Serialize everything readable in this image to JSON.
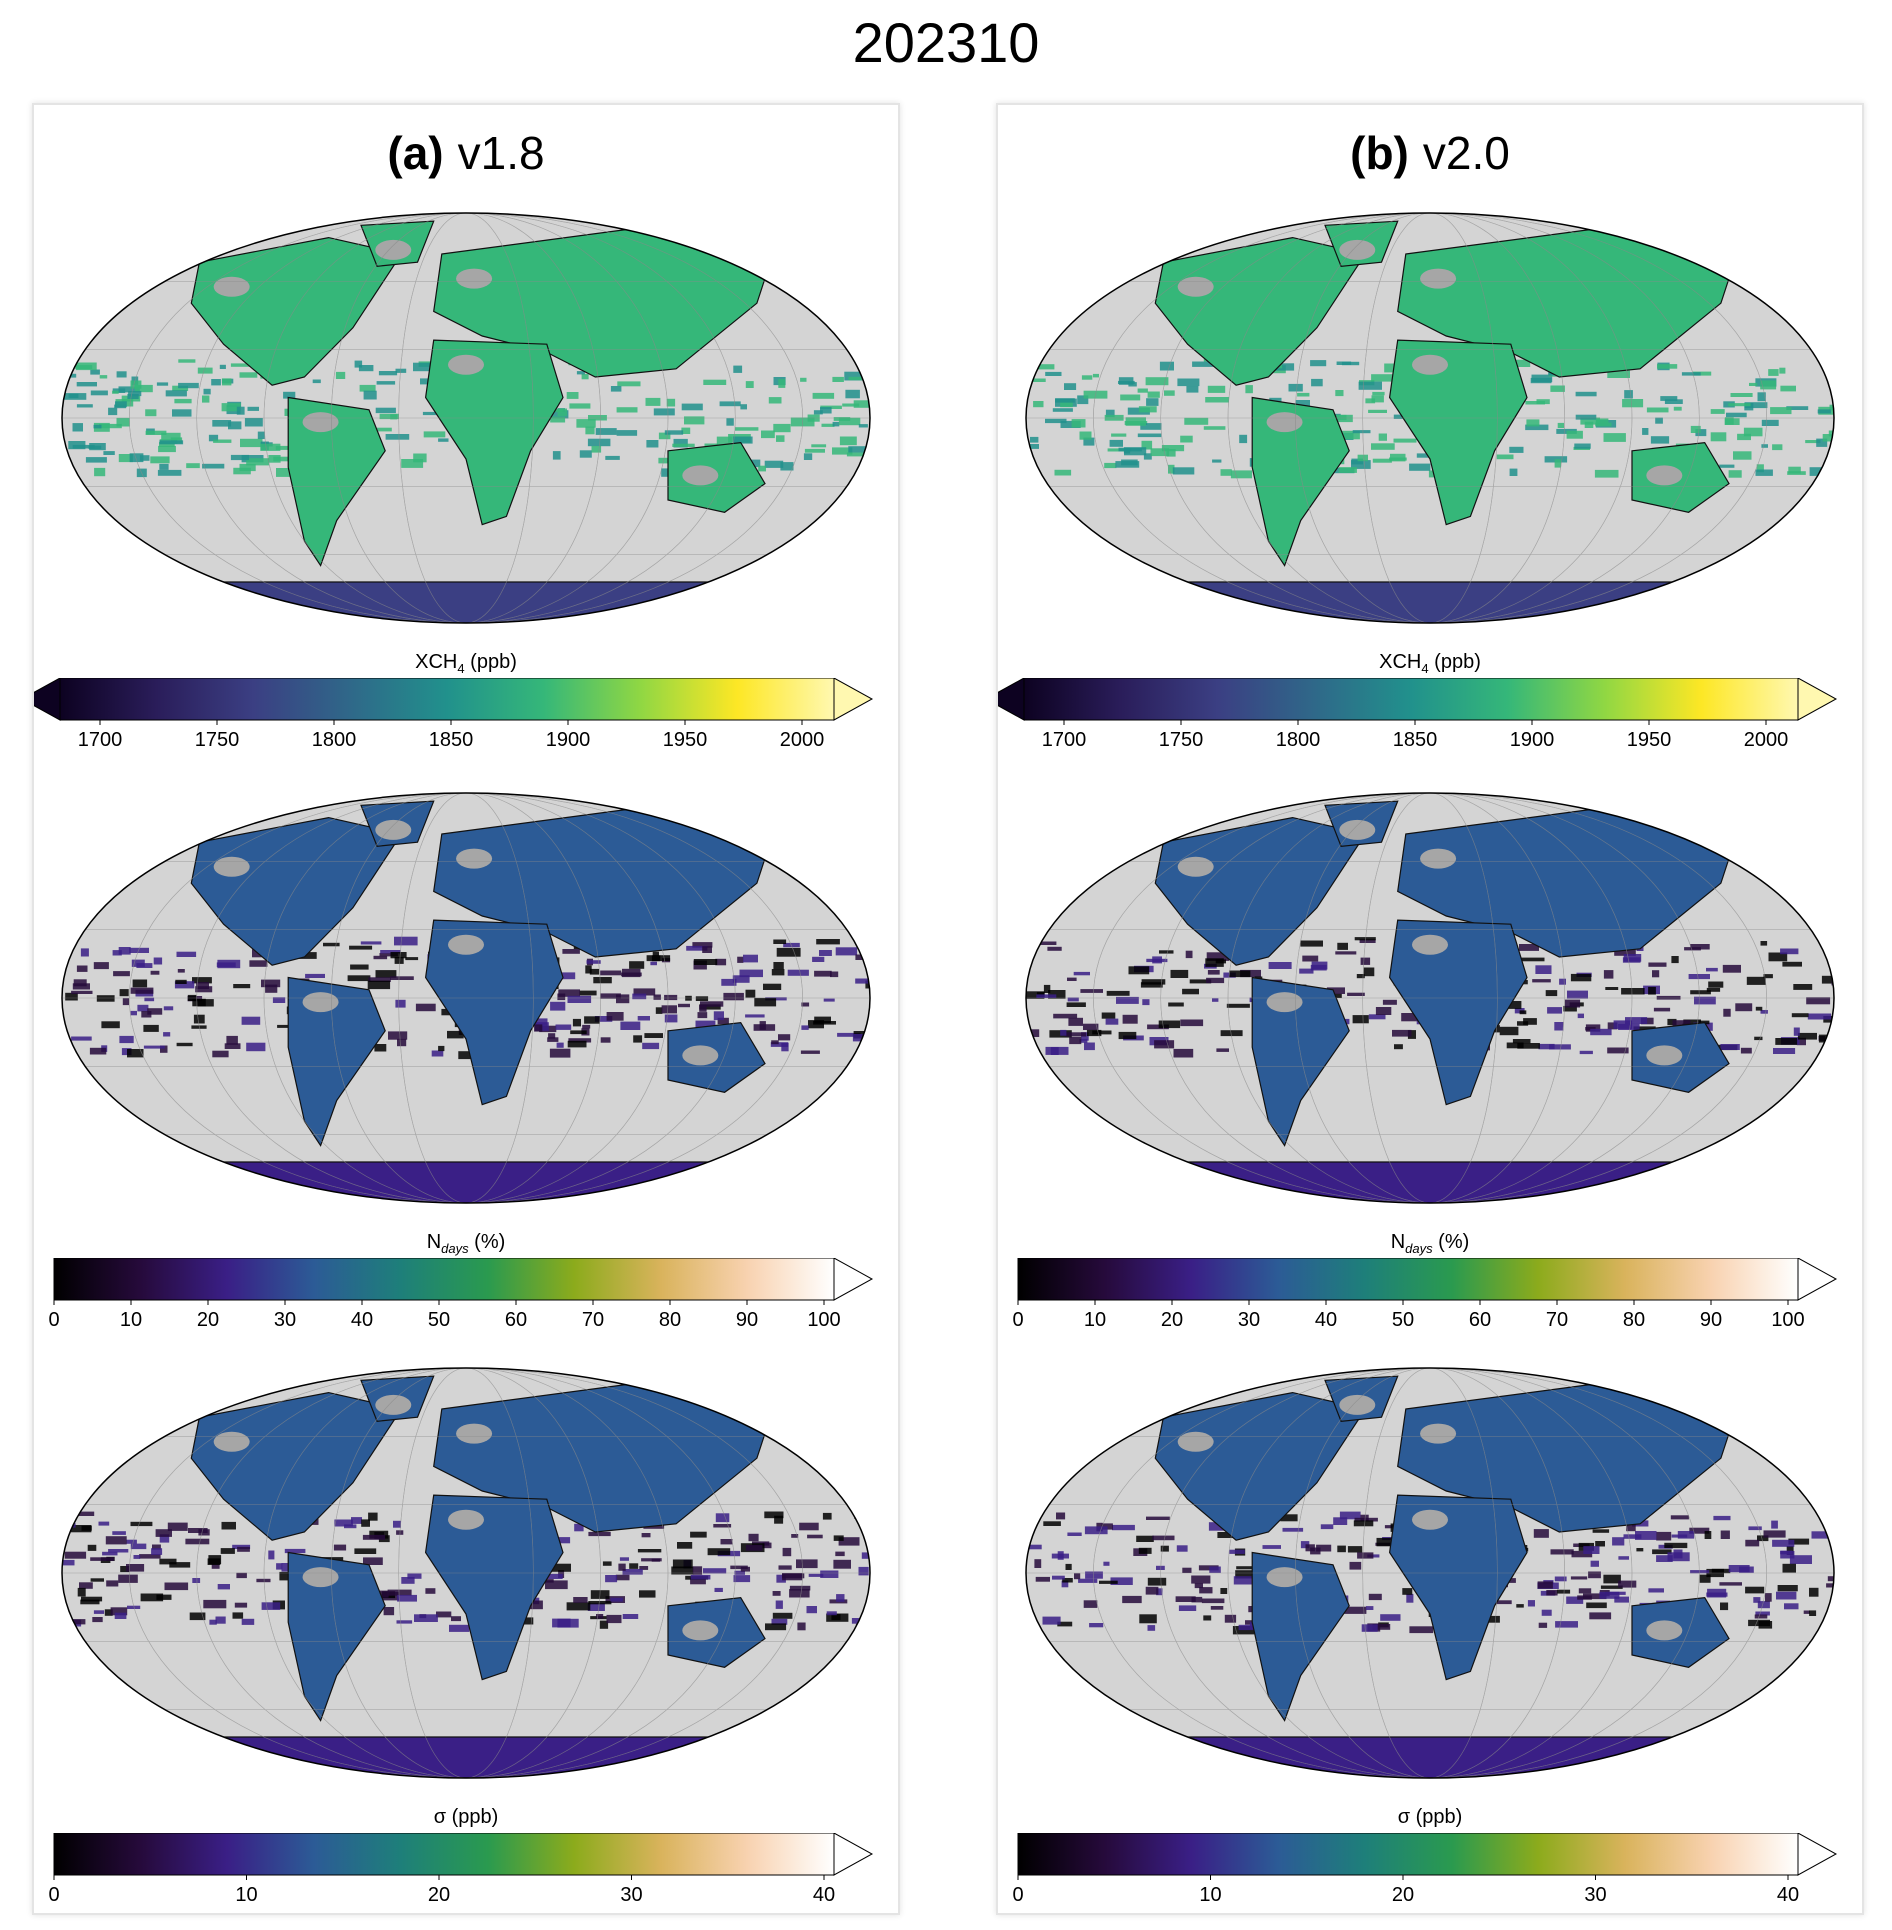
{
  "figure": {
    "title": "202310"
  },
  "panels": [
    {
      "id": "a",
      "letter": "(a)",
      "version": "v1.8"
    },
    {
      "id": "b",
      "letter": "(b)",
      "version": "v2.0"
    }
  ],
  "rows": [
    {
      "id": "xch4",
      "label_main": "XCH",
      "label_sub": "4",
      "label_tail": " (ppb)",
      "ticks": [
        1700,
        1750,
        1800,
        1850,
        1900,
        1950,
        2000
      ],
      "range": [
        1700,
        2000
      ],
      "extend": "both",
      "cmap": "viridis-like"
    },
    {
      "id": "ndays",
      "label_main": "N",
      "label_sub": "days",
      "label_tail": " (%)",
      "ticks": [
        0,
        10,
        20,
        30,
        40,
        50,
        60,
        70,
        80,
        90,
        100
      ],
      "range": [
        0,
        100
      ],
      "extend": "max",
      "cmap": "gist_earth-like"
    },
    {
      "id": "sigma",
      "label_main": "σ",
      "label_sub": "",
      "label_tail": " (ppb)",
      "ticks": [
        0,
        10,
        20,
        30,
        40
      ],
      "range": [
        0,
        40
      ],
      "extend": "max",
      "cmap": "gist_earth-like"
    }
  ],
  "colors": {
    "ocean_missing": "#d4d4d4",
    "land_missing": "#a6a6a6",
    "panel_border": "#e4e4e4"
  }
}
